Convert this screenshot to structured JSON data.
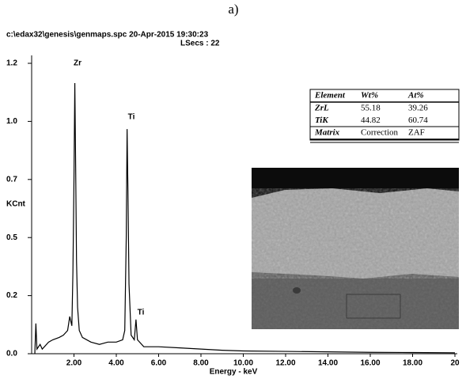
{
  "chart_data": {
    "type": "line",
    "caption": "a)",
    "header": "c:\\edax32\\genesis\\genmaps.spc  20-Apr-2015 19:30:23",
    "subheader": "LSecs : 22",
    "y_label": "KCnt",
    "x_label": "Energy - keV",
    "annotations": [
      "Zr",
      "Ti",
      "Ti"
    ],
    "color": "#000000",
    "xlim": [
      0,
      20
    ],
    "ylim": [
      0,
      1.25
    ],
    "xticks": [
      {
        "value": 2,
        "label": "2.00"
      },
      {
        "value": 4,
        "label": "4.00"
      },
      {
        "value": 6,
        "label": "6.00"
      },
      {
        "value": 8,
        "label": "8.00"
      },
      {
        "value": 10,
        "label": "10.00"
      },
      {
        "value": 12,
        "label": "12.00"
      },
      {
        "value": 14,
        "label": "14.00"
      },
      {
        "value": 16,
        "label": "16.00"
      },
      {
        "value": 18,
        "label": "18.00"
      },
      20
    ],
    "yticks": [
      {
        "value": 0,
        "label": "0.0"
      },
      {
        "value": 0.25,
        "label": "0.2"
      },
      0.5,
      {
        "value": 0.75,
        "label": "0.7"
      },
      {
        "value": 1,
        "label": "1.0"
      },
      {
        "value": 1.25,
        "label": "1.2"
      }
    ],
    "x": [
      0.15,
      0.2,
      0.25,
      0.4,
      0.5,
      0.8,
      1.0,
      1.3,
      1.5,
      1.7,
      1.8,
      1.9,
      1.95,
      2.0,
      2.04,
      2.08,
      2.12,
      2.17,
      2.25,
      2.4,
      2.8,
      3.2,
      3.6,
      4.0,
      4.3,
      4.4,
      4.47,
      4.51,
      4.55,
      4.6,
      4.7,
      4.85,
      4.93,
      5.0,
      5.3,
      6.0,
      7.0,
      8.0,
      9.0,
      10,
      12,
      14,
      16,
      18,
      20
    ],
    "values": [
      0.0,
      0.13,
      0.02,
      0.04,
      0.02,
      0.05,
      0.06,
      0.07,
      0.08,
      0.1,
      0.16,
      0.12,
      0.35,
      0.75,
      1.165,
      0.8,
      0.4,
      0.2,
      0.1,
      0.07,
      0.05,
      0.04,
      0.05,
      0.05,
      0.06,
      0.1,
      0.5,
      0.967,
      0.7,
      0.3,
      0.08,
      0.06,
      0.147,
      0.06,
      0.03,
      0.03,
      0.025,
      0.02,
      0.015,
      0.012,
      0.01,
      0.008,
      0.006,
      0.005,
      0.004
    ],
    "table": {
      "header": [
        "Element",
        "Wt%",
        "At%"
      ],
      "rows": [
        [
          "ZrL",
          "55.18",
          "39.26"
        ],
        [
          "TiK",
          "44.82",
          "60.74"
        ],
        [
          "Matrix",
          "Correction",
          "ZAF"
        ]
      ]
    }
  }
}
